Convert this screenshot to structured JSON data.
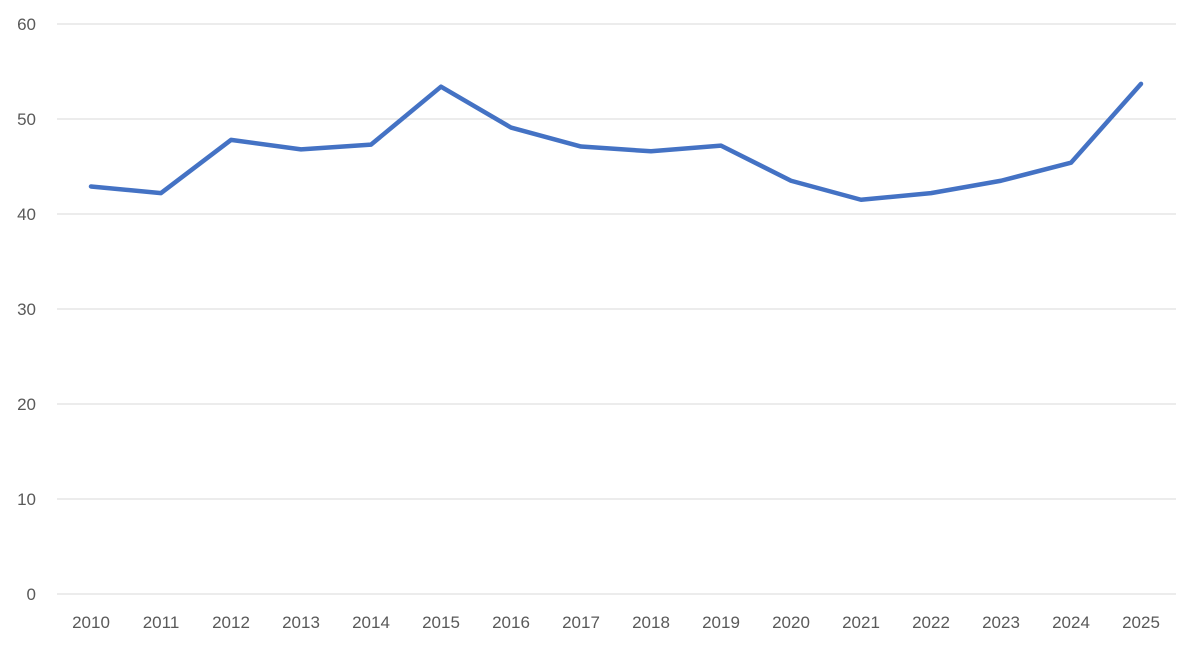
{
  "chart_data": {
    "type": "line",
    "title": "",
    "xlabel": "",
    "ylabel": "",
    "categories": [
      "2010",
      "2011",
      "2012",
      "2013",
      "2014",
      "2015",
      "2016",
      "2017",
      "2018",
      "2019",
      "2020",
      "2021",
      "2022",
      "2023",
      "2024",
      "2025"
    ],
    "series": [
      {
        "values": [
          42.9,
          42.2,
          47.8,
          46.8,
          47.3,
          53.4,
          49.1,
          47.1,
          46.6,
          47.2,
          43.5,
          41.5,
          42.2,
          43.5,
          45.4,
          53.7
        ],
        "color": "#4472c4"
      }
    ],
    "ylim": [
      0,
      60
    ],
    "yticks": [
      0,
      10,
      20,
      30,
      40,
      50,
      60
    ],
    "grid": "horizontal",
    "legend": "none"
  }
}
